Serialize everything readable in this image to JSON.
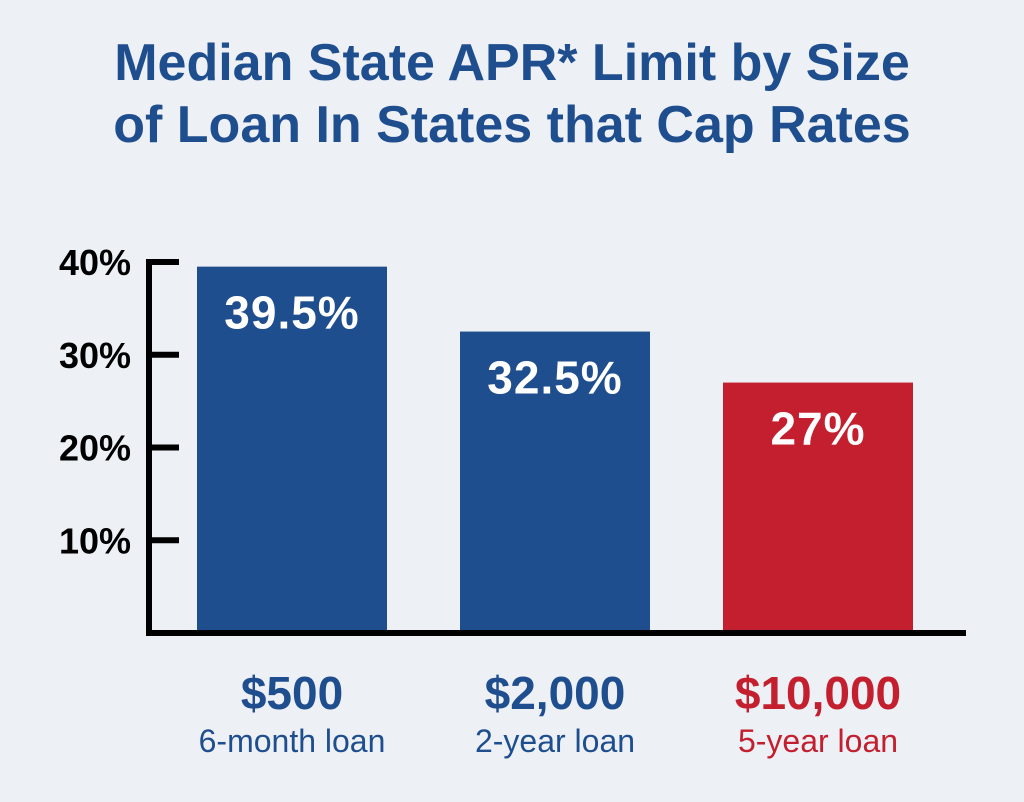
{
  "title": {
    "line1": "Median State APR* Limit by Size",
    "line2": "of Loan In States that Cap Rates"
  },
  "colors": {
    "background": "#edf0f5",
    "title": "#1f4e8f",
    "blue_bar": "#1f4e8f",
    "red_bar": "#c41f2e",
    "axis": "#000000"
  },
  "chart_data": {
    "type": "bar",
    "title": "Median State APR* Limit by Size of Loan In States that Cap Rates",
    "categories": [
      "$500",
      "$2,000",
      "$10,000"
    ],
    "category_sublabels": [
      "6-month loan",
      "2-year loan",
      "5-year loan"
    ],
    "values": [
      39.5,
      32.5,
      27
    ],
    "value_labels": [
      "39.5%",
      "32.5%",
      "27%"
    ],
    "bar_colors": [
      "#1f4e8f",
      "#1f4e8f",
      "#c41f2e"
    ],
    "yticks": [
      {
        "value": 10,
        "label": "10%"
      },
      {
        "value": 20,
        "label": "20%"
      },
      {
        "value": 30,
        "label": "30%"
      },
      {
        "value": 40,
        "label": "40%"
      }
    ],
    "ylim": [
      0,
      40
    ],
    "xlabel": "",
    "ylabel": "",
    "grid": false
  }
}
